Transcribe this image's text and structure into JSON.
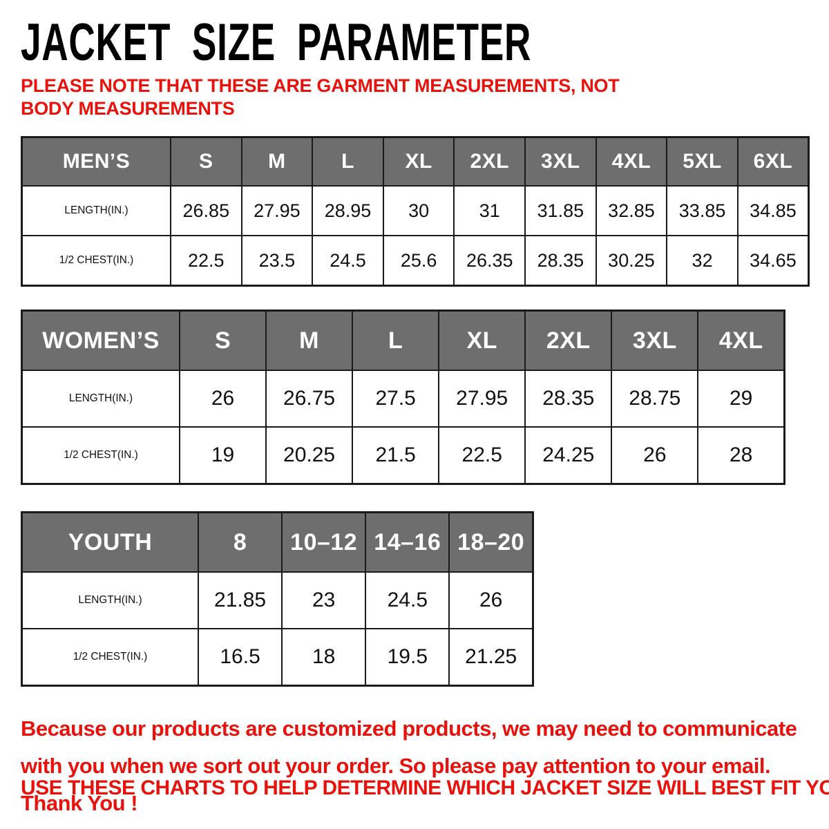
{
  "title": "JACKET SIZE PARAMETER",
  "note": "PLEASE NOTE THAT THESE ARE GARMENT MEASUREMENTS, NOT BODY MEASUREMENTS",
  "footer": {
    "paragraph": "Because our products are customized products, we may need to communicate with you when we sort out your order. So please pay attention to your email. Thank You !",
    "use_charts_line": "USE THESE CHARTS TO HELP DETERMINE WHICH JACKET SIZE WILL BEST FIT YOU."
  },
  "colors": {
    "accent_red": "#e8120c",
    "header_gray": "#6e6e6e",
    "border": "#1a1a1a",
    "text": "#000000"
  },
  "tables": [
    {
      "id": "mens",
      "header": [
        "MEN’S",
        "S",
        "M",
        "L",
        "XL",
        "2XL",
        "3XL",
        "4XL",
        "5XL",
        "6XL"
      ],
      "rows": [
        {
          "label": "LENGTH(IN.)",
          "values": [
            "26.85",
            "27.95",
            "28.95",
            "30",
            "31",
            "31.85",
            "32.85",
            "33.85",
            "34.85"
          ]
        },
        {
          "label": "1/2 CHEST(IN.)",
          "values": [
            "22.5",
            "23.5",
            "24.5",
            "25.6",
            "26.35",
            "28.35",
            "30.25",
            "32",
            "34.65"
          ]
        }
      ]
    },
    {
      "id": "womens",
      "header": [
        "WOMEN’S",
        "S",
        "M",
        "L",
        "XL",
        "2XL",
        "3XL",
        "4XL"
      ],
      "rows": [
        {
          "label": "LENGTH(IN.)",
          "values": [
            "26",
            "26.75",
            "27.5",
            "27.95",
            "28.35",
            "28.75",
            "29"
          ]
        },
        {
          "label": "1/2 CHEST(IN.)",
          "values": [
            "19",
            "20.25",
            "21.5",
            "22.5",
            "24.25",
            "26",
            "28"
          ]
        }
      ]
    },
    {
      "id": "youth",
      "header": [
        "YOUTH",
        "8",
        "10–12",
        "14–16",
        "18–20"
      ],
      "rows": [
        {
          "label": "LENGTH(IN.)",
          "values": [
            "21.85",
            "23",
            "24.5",
            "26"
          ]
        },
        {
          "label": "1/2 CHEST(IN.)",
          "values": [
            "16.5",
            "18",
            "19.5",
            "21.25"
          ]
        }
      ]
    }
  ]
}
